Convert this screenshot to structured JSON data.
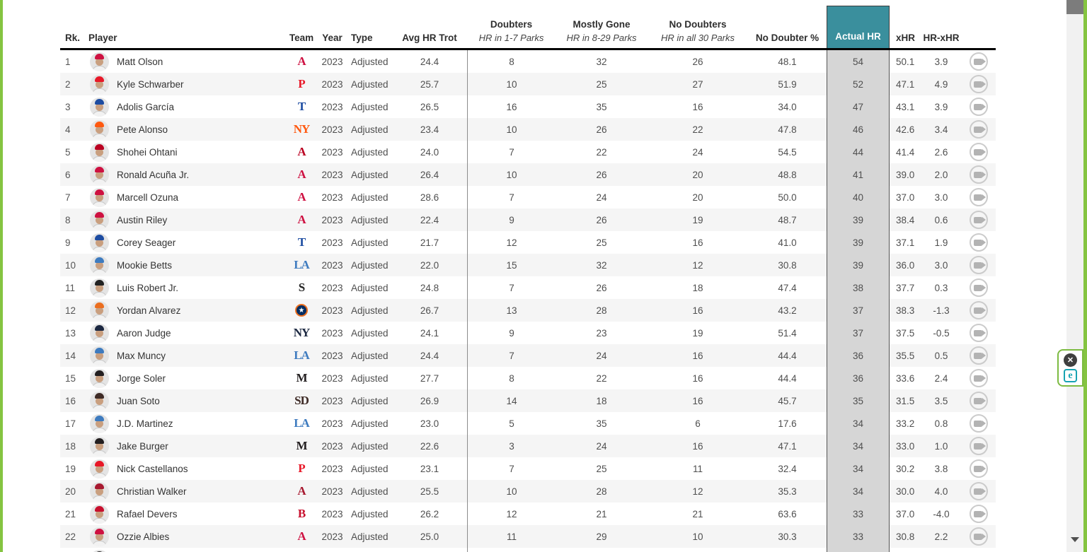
{
  "colors": {
    "frame_green": "#85C441",
    "teal_header": "#3A8F9D",
    "actual_col_bg": "#D6D6D6",
    "row_alt": "#F5F5F5",
    "eset_teal": "#17A3B2"
  },
  "header": {
    "rank": "Rk.",
    "player": "Player",
    "team": "Team",
    "year": "Year",
    "type": "Type",
    "avg_hr_trot": "Avg HR Trot",
    "doubters": "Doubters",
    "doubters_sub": "HR in 1-7 Parks",
    "mostly_gone": "Mostly Gone",
    "mostly_gone_sub": "HR in 8-29 Parks",
    "no_doubters": "No Doubters",
    "no_doubters_sub": "HR in all 30 Parks",
    "no_doubter_pct": "No Doubter %",
    "actual_hr": "Actual HR",
    "xhr": "xHR",
    "hr_minus_xhr": "HR-xHR"
  },
  "overlay": {
    "close_label": "✕",
    "eset_label": "e"
  },
  "table": {
    "partial_next_row": true,
    "rows": [
      {
        "rank": "1",
        "player": "Matt Olson",
        "team": "ATL",
        "team_mark": "A",
        "team_color": "#CE1141",
        "year": "2023",
        "type": "Adjusted",
        "avg_hr_trot": "24.4",
        "doubters": "8",
        "mostly_gone": "32",
        "no_doubters": "26",
        "no_doubter_pct": "48.1",
        "actual_hr": "54",
        "xhr": "50.1",
        "hr_minus_xhr": "3.9"
      },
      {
        "rank": "2",
        "player": "Kyle Schwarber",
        "team": "PHI",
        "team_mark": "P",
        "team_color": "#E81828",
        "year": "2023",
        "type": "Adjusted",
        "avg_hr_trot": "25.7",
        "doubters": "10",
        "mostly_gone": "25",
        "no_doubters": "27",
        "no_doubter_pct": "51.9",
        "actual_hr": "52",
        "xhr": "47.1",
        "hr_minus_xhr": "4.9"
      },
      {
        "rank": "3",
        "player": "Adolis García",
        "team": "TEX",
        "team_mark": "T",
        "team_color": "#1D4CA1",
        "year": "2023",
        "type": "Adjusted",
        "avg_hr_trot": "26.5",
        "doubters": "16",
        "mostly_gone": "35",
        "no_doubters": "16",
        "no_doubter_pct": "34.0",
        "actual_hr": "47",
        "xhr": "43.1",
        "hr_minus_xhr": "3.9"
      },
      {
        "rank": "4",
        "player": "Pete Alonso",
        "team": "NYM",
        "team_mark": "NY",
        "team_color": "#FF5910",
        "year": "2023",
        "type": "Adjusted",
        "avg_hr_trot": "23.4",
        "doubters": "10",
        "mostly_gone": "26",
        "no_doubters": "22",
        "no_doubter_pct": "47.8",
        "actual_hr": "46",
        "xhr": "42.6",
        "hr_minus_xhr": "3.4"
      },
      {
        "rank": "5",
        "player": "Shohei Ohtani",
        "team": "LAA",
        "team_mark": "A",
        "team_color": "#BA0021",
        "year": "2023",
        "type": "Adjusted",
        "avg_hr_trot": "24.0",
        "doubters": "7",
        "mostly_gone": "22",
        "no_doubters": "24",
        "no_doubter_pct": "54.5",
        "actual_hr": "44",
        "xhr": "41.4",
        "hr_minus_xhr": "2.6"
      },
      {
        "rank": "6",
        "player": "Ronald Acuña Jr.",
        "team": "ATL",
        "team_mark": "A",
        "team_color": "#CE1141",
        "year": "2023",
        "type": "Adjusted",
        "avg_hr_trot": "26.4",
        "doubters": "10",
        "mostly_gone": "26",
        "no_doubters": "20",
        "no_doubter_pct": "48.8",
        "actual_hr": "41",
        "xhr": "39.0",
        "hr_minus_xhr": "2.0"
      },
      {
        "rank": "7",
        "player": "Marcell Ozuna",
        "team": "ATL",
        "team_mark": "A",
        "team_color": "#CE1141",
        "year": "2023",
        "type": "Adjusted",
        "avg_hr_trot": "28.6",
        "doubters": "7",
        "mostly_gone": "24",
        "no_doubters": "20",
        "no_doubter_pct": "50.0",
        "actual_hr": "40",
        "xhr": "37.0",
        "hr_minus_xhr": "3.0"
      },
      {
        "rank": "8",
        "player": "Austin Riley",
        "team": "ATL",
        "team_mark": "A",
        "team_color": "#CE1141",
        "year": "2023",
        "type": "Adjusted",
        "avg_hr_trot": "22.4",
        "doubters": "9",
        "mostly_gone": "26",
        "no_doubters": "19",
        "no_doubter_pct": "48.7",
        "actual_hr": "39",
        "xhr": "38.4",
        "hr_minus_xhr": "0.6"
      },
      {
        "rank": "9",
        "player": "Corey Seager",
        "team": "TEX",
        "team_mark": "T",
        "team_color": "#1D4CA1",
        "year": "2023",
        "type": "Adjusted",
        "avg_hr_trot": "21.7",
        "doubters": "12",
        "mostly_gone": "25",
        "no_doubters": "16",
        "no_doubter_pct": "41.0",
        "actual_hr": "39",
        "xhr": "37.1",
        "hr_minus_xhr": "1.9"
      },
      {
        "rank": "10",
        "player": "Mookie Betts",
        "team": "LAD",
        "team_mark": "LA",
        "team_color": "#3E7BBF",
        "year": "2023",
        "type": "Adjusted",
        "avg_hr_trot": "22.0",
        "doubters": "15",
        "mostly_gone": "32",
        "no_doubters": "12",
        "no_doubter_pct": "30.8",
        "actual_hr": "39",
        "xhr": "36.0",
        "hr_minus_xhr": "3.0"
      },
      {
        "rank": "11",
        "player": "Luis Robert Jr.",
        "team": "CWS",
        "team_mark": "S",
        "team_color": "#222222",
        "year": "2023",
        "type": "Adjusted",
        "avg_hr_trot": "24.8",
        "doubters": "7",
        "mostly_gone": "26",
        "no_doubters": "18",
        "no_doubter_pct": "47.4",
        "actual_hr": "38",
        "xhr": "37.7",
        "hr_minus_xhr": "0.3"
      },
      {
        "rank": "12",
        "player": "Yordan Alvarez",
        "team": "HOU",
        "team_mark": "★",
        "team_color": "#EB6E1F",
        "year": "2023",
        "type": "Adjusted",
        "avg_hr_trot": "26.7",
        "doubters": "13",
        "mostly_gone": "28",
        "no_doubters": "16",
        "no_doubter_pct": "43.2",
        "actual_hr": "37",
        "xhr": "38.3",
        "hr_minus_xhr": "-1.3"
      },
      {
        "rank": "13",
        "player": "Aaron Judge",
        "team": "NYY",
        "team_mark": "NY",
        "team_color": "#1C2841",
        "year": "2023",
        "type": "Adjusted",
        "avg_hr_trot": "24.1",
        "doubters": "9",
        "mostly_gone": "23",
        "no_doubters": "19",
        "no_doubter_pct": "51.4",
        "actual_hr": "37",
        "xhr": "37.5",
        "hr_minus_xhr": "-0.5"
      },
      {
        "rank": "14",
        "player": "Max Muncy",
        "team": "LAD",
        "team_mark": "LA",
        "team_color": "#3E7BBF",
        "year": "2023",
        "type": "Adjusted",
        "avg_hr_trot": "24.4",
        "doubters": "7",
        "mostly_gone": "24",
        "no_doubters": "16",
        "no_doubter_pct": "44.4",
        "actual_hr": "36",
        "xhr": "35.5",
        "hr_minus_xhr": "0.5"
      },
      {
        "rank": "15",
        "player": "Jorge Soler",
        "team": "MIA",
        "team_mark": "M",
        "team_color": "#231F20",
        "year": "2023",
        "type": "Adjusted",
        "avg_hr_trot": "27.7",
        "doubters": "8",
        "mostly_gone": "22",
        "no_doubters": "16",
        "no_doubter_pct": "44.4",
        "actual_hr": "36",
        "xhr": "33.6",
        "hr_minus_xhr": "2.4"
      },
      {
        "rank": "16",
        "player": "Juan Soto",
        "team": "SD",
        "team_mark": "SD",
        "team_color": "#3E2B26",
        "year": "2023",
        "type": "Adjusted",
        "avg_hr_trot": "26.9",
        "doubters": "14",
        "mostly_gone": "18",
        "no_doubters": "16",
        "no_doubter_pct": "45.7",
        "actual_hr": "35",
        "xhr": "31.5",
        "hr_minus_xhr": "3.5"
      },
      {
        "rank": "17",
        "player": "J.D. Martinez",
        "team": "LAD",
        "team_mark": "LA",
        "team_color": "#3E7BBF",
        "year": "2023",
        "type": "Adjusted",
        "avg_hr_trot": "23.0",
        "doubters": "5",
        "mostly_gone": "35",
        "no_doubters": "6",
        "no_doubter_pct": "17.6",
        "actual_hr": "34",
        "xhr": "33.2",
        "hr_minus_xhr": "0.8"
      },
      {
        "rank": "18",
        "player": "Jake Burger",
        "team": "MIA",
        "team_mark": "M",
        "team_color": "#231F20",
        "year": "2023",
        "type": "Adjusted",
        "avg_hr_trot": "22.6",
        "doubters": "3",
        "mostly_gone": "24",
        "no_doubters": "16",
        "no_doubter_pct": "47.1",
        "actual_hr": "34",
        "xhr": "33.0",
        "hr_minus_xhr": "1.0"
      },
      {
        "rank": "19",
        "player": "Nick Castellanos",
        "team": "PHI",
        "team_mark": "P",
        "team_color": "#E81828",
        "year": "2023",
        "type": "Adjusted",
        "avg_hr_trot": "23.1",
        "doubters": "7",
        "mostly_gone": "25",
        "no_doubters": "11",
        "no_doubter_pct": "32.4",
        "actual_hr": "34",
        "xhr": "30.2",
        "hr_minus_xhr": "3.8"
      },
      {
        "rank": "20",
        "player": "Christian Walker",
        "team": "ARI",
        "team_mark": "A",
        "team_color": "#A71930",
        "year": "2023",
        "type": "Adjusted",
        "avg_hr_trot": "25.5",
        "doubters": "10",
        "mostly_gone": "28",
        "no_doubters": "12",
        "no_doubter_pct": "35.3",
        "actual_hr": "34",
        "xhr": "30.0",
        "hr_minus_xhr": "4.0"
      },
      {
        "rank": "21",
        "player": "Rafael Devers",
        "team": "BOS",
        "team_mark": "B",
        "team_color": "#C8102E",
        "year": "2023",
        "type": "Adjusted",
        "avg_hr_trot": "26.2",
        "doubters": "12",
        "mostly_gone": "21",
        "no_doubters": "21",
        "no_doubter_pct": "63.6",
        "actual_hr": "33",
        "xhr": "37.0",
        "hr_minus_xhr": "-4.0"
      },
      {
        "rank": "22",
        "player": "Ozzie Albies",
        "team": "ATL",
        "team_mark": "A",
        "team_color": "#CE1141",
        "year": "2023",
        "type": "Adjusted",
        "avg_hr_trot": "25.0",
        "doubters": "11",
        "mostly_gone": "29",
        "no_doubters": "10",
        "no_doubter_pct": "30.3",
        "actual_hr": "33",
        "xhr": "30.8",
        "hr_minus_xhr": "2.2"
      }
    ]
  }
}
